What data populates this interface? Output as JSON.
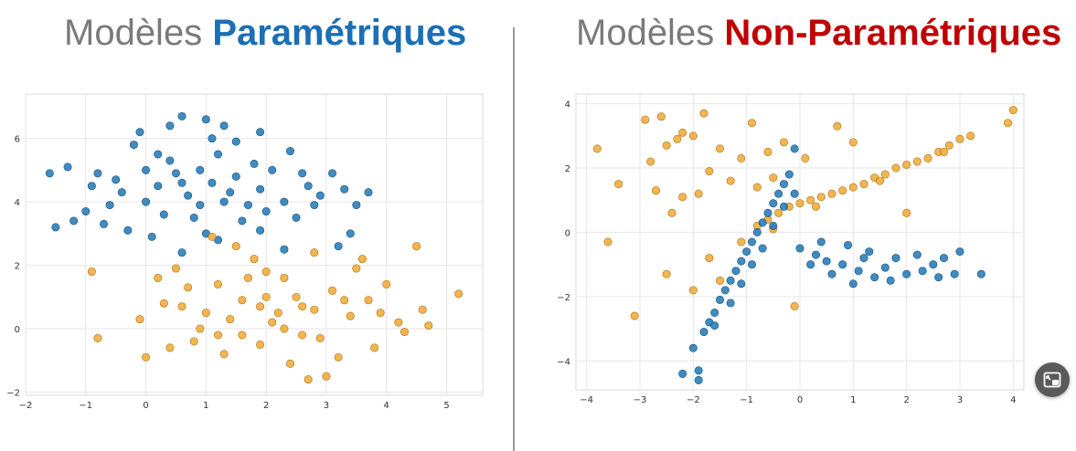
{
  "titles": {
    "left": {
      "prefix": "Modèles ",
      "accent": "Paramétriques",
      "accent_color": "#1a6fb5"
    },
    "right": {
      "prefix": "Modèles ",
      "accent": "Non-Paramétriques",
      "accent_color": "#c00000"
    }
  },
  "colors": {
    "blue": "#1f77b4",
    "orange": "#f0a830",
    "grid": "#e6e6e6",
    "prefix_gray": "#7a7a7a"
  },
  "pip_button": {
    "icon": "picture-in-picture-icon"
  },
  "chart_data": [
    {
      "type": "scatter",
      "title": "",
      "xlabel": "",
      "ylabel": "",
      "xlim": [
        -2,
        5.6
      ],
      "ylim": [
        -2.1,
        7.4
      ],
      "xticks": [
        -2,
        -1,
        0,
        1,
        2,
        3,
        4,
        5
      ],
      "yticks": [
        -2,
        0,
        2,
        4,
        6
      ],
      "grid": true,
      "series": [
        {
          "color": "blue",
          "points": [
            [
              -1.6,
              4.9
            ],
            [
              -1.3,
              5.1
            ],
            [
              -1.5,
              3.2
            ],
            [
              -1.2,
              3.4
            ],
            [
              -0.9,
              4.5
            ],
            [
              -0.6,
              3.9
            ],
            [
              -0.5,
              4.7
            ],
            [
              -0.2,
              5.8
            ],
            [
              -0.1,
              6.2
            ],
            [
              0.2,
              5.5
            ],
            [
              0.4,
              6.4
            ],
            [
              0.6,
              6.7
            ],
            [
              1.0,
              6.6
            ],
            [
              1.3,
              6.4
            ],
            [
              1.5,
              5.9
            ],
            [
              1.9,
              6.2
            ],
            [
              2.4,
              5.6
            ],
            [
              2.6,
              4.9
            ],
            [
              2.9,
              4.2
            ],
            [
              3.1,
              4.9
            ],
            [
              3.3,
              4.4
            ],
            [
              3.5,
              3.9
            ],
            [
              3.7,
              4.3
            ],
            [
              3.4,
              3.0
            ],
            [
              3.2,
              2.6
            ],
            [
              2.3,
              2.5
            ],
            [
              1.9,
              3.1
            ],
            [
              1.2,
              2.8
            ],
            [
              0.6,
              2.4
            ],
            [
              0.1,
              2.9
            ],
            [
              -0.3,
              3.1
            ],
            [
              -0.7,
              3.3
            ],
            [
              -1.0,
              3.7
            ],
            [
              0.0,
              4.0
            ],
            [
              0.2,
              4.5
            ],
            [
              0.5,
              4.9
            ],
            [
              0.7,
              4.2
            ],
            [
              0.9,
              5.0
            ],
            [
              1.1,
              4.6
            ],
            [
              1.3,
              4.0
            ],
            [
              1.5,
              4.8
            ],
            [
              1.7,
              3.9
            ],
            [
              1.9,
              4.4
            ],
            [
              2.1,
              5.0
            ],
            [
              2.3,
              4.0
            ],
            [
              0.3,
              3.6
            ],
            [
              0.8,
              3.5
            ],
            [
              1.6,
              3.4
            ],
            [
              2.5,
              3.5
            ],
            [
              -0.4,
              4.3
            ],
            [
              0.4,
              5.3
            ],
            [
              1.2,
              5.5
            ],
            [
              1.8,
              5.2
            ],
            [
              2.7,
              4.5
            ],
            [
              0.9,
              3.9
            ],
            [
              1.4,
              4.3
            ],
            [
              0.6,
              4.6
            ],
            [
              1.0,
              3.0
            ],
            [
              -0.8,
              4.9
            ],
            [
              2.0,
              3.7
            ],
            [
              1.1,
              6.0
            ],
            [
              0.0,
              5.0
            ],
            [
              2.8,
              3.9
            ]
          ]
        },
        {
          "color": "orange",
          "points": [
            [
              -0.8,
              -0.3
            ],
            [
              -0.1,
              0.3
            ],
            [
              0.0,
              -0.9
            ],
            [
              0.3,
              0.8
            ],
            [
              0.5,
              1.9
            ],
            [
              0.4,
              -0.6
            ],
            [
              0.8,
              -0.4
            ],
            [
              1.0,
              0.5
            ],
            [
              1.2,
              1.4
            ],
            [
              1.3,
              -0.8
            ],
            [
              1.6,
              0.9
            ],
            [
              1.8,
              2.2
            ],
            [
              1.9,
              -0.5
            ],
            [
              2.1,
              0.2
            ],
            [
              2.3,
              1.6
            ],
            [
              2.4,
              -1.1
            ],
            [
              2.6,
              0.7
            ],
            [
              2.8,
              2.4
            ],
            [
              2.9,
              -0.3
            ],
            [
              3.1,
              1.2
            ],
            [
              3.2,
              -0.9
            ],
            [
              3.4,
              0.4
            ],
            [
              3.5,
              1.9
            ],
            [
              3.7,
              0.9
            ],
            [
              3.8,
              -0.6
            ],
            [
              4.0,
              1.4
            ],
            [
              4.2,
              0.2
            ],
            [
              4.5,
              2.6
            ],
            [
              4.6,
              0.6
            ],
            [
              4.7,
              0.1
            ],
            [
              5.2,
              1.1
            ],
            [
              2.7,
              -1.6
            ],
            [
              3.0,
              -1.5
            ],
            [
              0.7,
              1.3
            ],
            [
              1.5,
              2.6
            ],
            [
              2.0,
              1.0
            ],
            [
              2.2,
              0.5
            ],
            [
              1.7,
              1.6
            ],
            [
              0.9,
              0.0
            ],
            [
              2.5,
              1.0
            ],
            [
              3.3,
              0.9
            ],
            [
              1.4,
              0.3
            ],
            [
              2.0,
              1.8
            ],
            [
              0.6,
              0.7
            ],
            [
              2.6,
              -0.2
            ],
            [
              3.6,
              2.2
            ],
            [
              -0.9,
              1.8
            ],
            [
              1.1,
              2.9
            ],
            [
              1.9,
              0.7
            ],
            [
              2.3,
              0.0
            ],
            [
              1.6,
              -0.2
            ],
            [
              2.8,
              0.6
            ],
            [
              3.9,
              0.5
            ],
            [
              4.3,
              -0.1
            ],
            [
              0.2,
              1.6
            ],
            [
              1.2,
              -0.2
            ]
          ]
        }
      ]
    },
    {
      "type": "scatter",
      "title": "",
      "xlabel": "",
      "ylabel": "",
      "xlim": [
        -4.2,
        4.2
      ],
      "ylim": [
        -4.9,
        4.3
      ],
      "xticks": [
        -4,
        -3,
        -2,
        -1,
        0,
        1,
        2,
        3,
        4
      ],
      "yticks": [
        -4,
        -2,
        0,
        2,
        4
      ],
      "grid": true,
      "series": [
        {
          "color": "orange",
          "points": [
            [
              -3.8,
              2.6
            ],
            [
              -3.4,
              1.5
            ],
            [
              -3.6,
              -0.3
            ],
            [
              -2.9,
              3.5
            ],
            [
              -2.6,
              3.6
            ],
            [
              -2.5,
              2.7
            ],
            [
              -2.3,
              2.9
            ],
            [
              -2.0,
              3.0
            ],
            [
              -1.8,
              3.7
            ],
            [
              -2.8,
              2.2
            ],
            [
              -2.7,
              1.3
            ],
            [
              -2.2,
              1.1
            ],
            [
              -2.4,
              0.6
            ],
            [
              -1.9,
              1.2
            ],
            [
              -1.7,
              1.9
            ],
            [
              -1.5,
              2.6
            ],
            [
              -1.3,
              1.6
            ],
            [
              -1.1,
              2.3
            ],
            [
              -0.9,
              3.4
            ],
            [
              -0.8,
              1.4
            ],
            [
              -0.6,
              2.5
            ],
            [
              -0.5,
              1.7
            ],
            [
              -0.3,
              2.8
            ],
            [
              0.7,
              3.3
            ],
            [
              1.0,
              2.8
            ],
            [
              -3.1,
              -2.6
            ],
            [
              -2.0,
              -1.8
            ],
            [
              -2.5,
              -1.3
            ],
            [
              -1.1,
              -0.3
            ],
            [
              -0.8,
              0.2
            ],
            [
              -0.6,
              0.4
            ],
            [
              -0.4,
              0.6
            ],
            [
              -0.2,
              0.8
            ],
            [
              0.0,
              0.9
            ],
            [
              0.2,
              1.0
            ],
            [
              0.4,
              1.1
            ],
            [
              0.6,
              1.2
            ],
            [
              0.8,
              1.3
            ],
            [
              1.0,
              1.4
            ],
            [
              1.2,
              1.5
            ],
            [
              1.4,
              1.7
            ],
            [
              1.6,
              1.8
            ],
            [
              1.8,
              2.0
            ],
            [
              2.0,
              2.1
            ],
            [
              2.2,
              2.2
            ],
            [
              2.4,
              2.3
            ],
            [
              2.6,
              2.5
            ],
            [
              2.8,
              2.7
            ],
            [
              3.0,
              2.9
            ],
            [
              3.2,
              3.0
            ],
            [
              3.9,
              3.4
            ],
            [
              4.0,
              3.8
            ],
            [
              -0.5,
              0.1
            ],
            [
              0.3,
              0.8
            ],
            [
              1.5,
              1.6
            ],
            [
              2.7,
              2.5
            ],
            [
              -1.5,
              -1.5
            ],
            [
              -0.1,
              -2.3
            ],
            [
              2.0,
              0.6
            ],
            [
              -1.7,
              -0.8
            ],
            [
              -2.2,
              3.1
            ],
            [
              0.1,
              2.3
            ]
          ]
        },
        {
          "color": "blue",
          "points": [
            [
              -2.2,
              -4.4
            ],
            [
              -1.9,
              -4.6
            ],
            [
              -1.9,
              -4.3
            ],
            [
              -2.0,
              -3.6
            ],
            [
              -1.8,
              -3.1
            ],
            [
              -1.7,
              -2.8
            ],
            [
              -1.6,
              -2.5
            ],
            [
              -1.5,
              -2.1
            ],
            [
              -1.4,
              -1.8
            ],
            [
              -1.3,
              -1.5
            ],
            [
              -1.2,
              -1.2
            ],
            [
              -1.1,
              -0.9
            ],
            [
              -1.0,
              -0.6
            ],
            [
              -0.9,
              -0.3
            ],
            [
              -0.8,
              0.0
            ],
            [
              -0.7,
              0.3
            ],
            [
              -0.6,
              0.6
            ],
            [
              -0.5,
              0.9
            ],
            [
              -0.4,
              1.2
            ],
            [
              -0.3,
              1.5
            ],
            [
              -0.2,
              1.8
            ],
            [
              -0.1,
              2.6
            ],
            [
              -1.6,
              -2.9
            ],
            [
              -1.3,
              -2.2
            ],
            [
              -1.1,
              -1.6
            ],
            [
              -0.9,
              -1.0
            ],
            [
              -0.7,
              -0.5
            ],
            [
              -0.5,
              0.2
            ],
            [
              -0.3,
              0.8
            ],
            [
              -0.1,
              1.2
            ],
            [
              0.0,
              -0.5
            ],
            [
              0.3,
              -0.7
            ],
            [
              0.5,
              -0.9
            ],
            [
              0.8,
              -1.0
            ],
            [
              1.1,
              -1.2
            ],
            [
              1.4,
              -1.4
            ],
            [
              1.7,
              -1.5
            ],
            [
              2.0,
              -1.3
            ],
            [
              2.3,
              -1.2
            ],
            [
              2.5,
              -1.0
            ],
            [
              2.7,
              -0.8
            ],
            [
              3.0,
              -0.6
            ],
            [
              3.4,
              -1.3
            ],
            [
              0.4,
              -0.3
            ],
            [
              0.9,
              -0.4
            ],
            [
              1.3,
              -0.6
            ],
            [
              1.8,
              -0.8
            ],
            [
              2.2,
              -0.7
            ],
            [
              2.6,
              -1.4
            ],
            [
              0.6,
              -1.3
            ],
            [
              1.0,
              -1.6
            ],
            [
              1.6,
              -1.1
            ],
            [
              2.9,
              -1.3
            ],
            [
              1.2,
              -0.8
            ],
            [
              0.2,
              -1.0
            ]
          ]
        }
      ]
    }
  ]
}
